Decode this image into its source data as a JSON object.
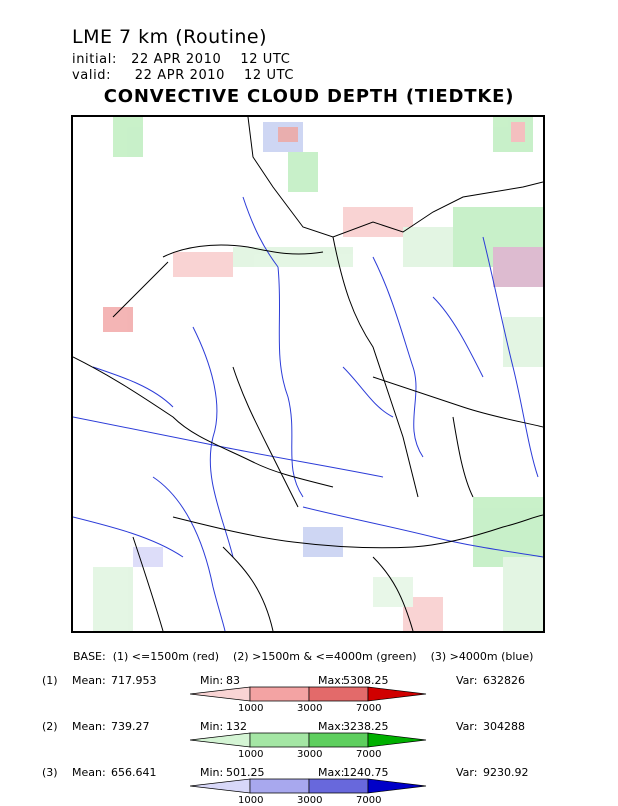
{
  "header": {
    "model": "LME 7 km (Routine)",
    "initial_label": "initial:",
    "initial_value": "22 APR 2010    12 UTC",
    "valid_label": "valid:",
    "valid_value": "22 APR 2010    12 UTC",
    "field_title": "CONVECTIVE CLOUD DEPTH (TIEDTKE)"
  },
  "legend": {
    "base_text": "BASE:  (1) <=1500m (red)    (2) >1500m & <=4000m (green)    (3) >4000m (blue)",
    "rows": [
      {
        "id": "(1)",
        "mean_label": "Mean:",
        "mean": "717.953",
        "min_label": "Min:",
        "min": "83",
        "max_label": "Max:",
        "max": "5308.25",
        "var_label": "Var:",
        "var": "632826"
      },
      {
        "id": "(2)",
        "mean_label": "Mean:",
        "mean": "739.27",
        "min_label": "Min:",
        "min": "132",
        "max_label": "Max:",
        "max": "3238.25",
        "var_label": "Var:",
        "var": "304288"
      },
      {
        "id": "(3)",
        "mean_label": "Mean:",
        "mean": "656.641",
        "min_label": "Min:",
        "min": "501.25",
        "max_label": "Max:",
        "max": "1240.75",
        "var_label": "Var:",
        "var": "9230.92"
      }
    ],
    "ticks": [
      "1000",
      "3000",
      "7000"
    ],
    "colors": {
      "red": [
        "#f9d4d4",
        "#f3a3a3",
        "#e36a6a",
        "#d00000"
      ],
      "green": [
        "#d4f4d4",
        "#a4e6a4",
        "#5ecf5e",
        "#00b000"
      ],
      "blue": [
        "#d8d8f8",
        "#a8a8ee",
        "#6868dc",
        "#0000c8"
      ]
    }
  },
  "map_colors": {
    "coast": "#000000",
    "rivers": "#2c3cd8"
  }
}
